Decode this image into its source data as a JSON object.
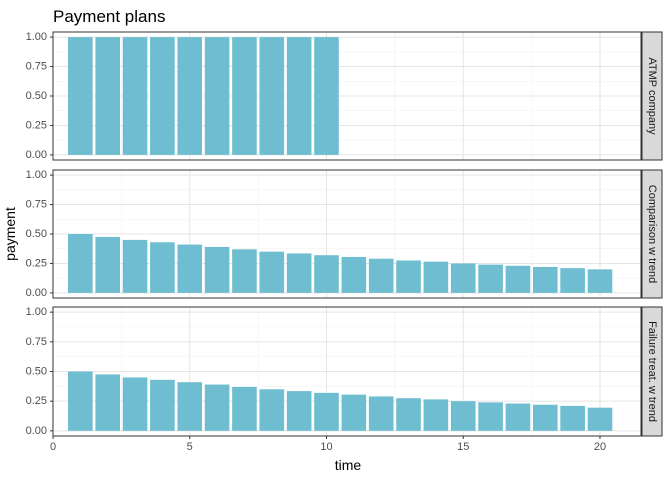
{
  "chart_data": {
    "type": "bar",
    "title": "Payment plans",
    "xlabel": "time",
    "ylabel": "payment",
    "xlim": [
      0,
      21.5
    ],
    "ylim": [
      0,
      1.0
    ],
    "x_ticks": [
      0,
      5,
      10,
      15,
      20
    ],
    "y_ticks": [
      0.0,
      0.25,
      0.5,
      0.75,
      1.0
    ],
    "y_tick_labels": [
      "0.00",
      "0.25",
      "0.50",
      "0.75",
      "1.00"
    ],
    "grid": true,
    "bar_color": "#6fbdd0",
    "facets": [
      {
        "label": "ATMP company",
        "x": [
          1,
          2,
          3,
          4,
          5,
          6,
          7,
          8,
          9,
          10
        ],
        "values": [
          1,
          1,
          1,
          1,
          1,
          1,
          1,
          1,
          1,
          1
        ]
      },
      {
        "label": "Comparison w trend",
        "x": [
          1,
          2,
          3,
          4,
          5,
          6,
          7,
          8,
          9,
          10,
          11,
          12,
          13,
          14,
          15,
          16,
          17,
          18,
          19,
          20
        ],
        "values": [
          0.5,
          0.475,
          0.45,
          0.43,
          0.41,
          0.39,
          0.37,
          0.35,
          0.335,
          0.32,
          0.305,
          0.29,
          0.275,
          0.265,
          0.25,
          0.24,
          0.23,
          0.22,
          0.21,
          0.2
        ]
      },
      {
        "label": "Failure treat. w trend",
        "x": [
          1,
          2,
          3,
          4,
          5,
          6,
          7,
          8,
          9,
          10,
          11,
          12,
          13,
          14,
          15,
          16,
          17,
          18,
          19,
          20
        ],
        "values": [
          0.5,
          0.475,
          0.45,
          0.43,
          0.41,
          0.39,
          0.37,
          0.35,
          0.335,
          0.32,
          0.305,
          0.29,
          0.275,
          0.265,
          0.25,
          0.24,
          0.23,
          0.22,
          0.21,
          0.195
        ]
      }
    ]
  }
}
